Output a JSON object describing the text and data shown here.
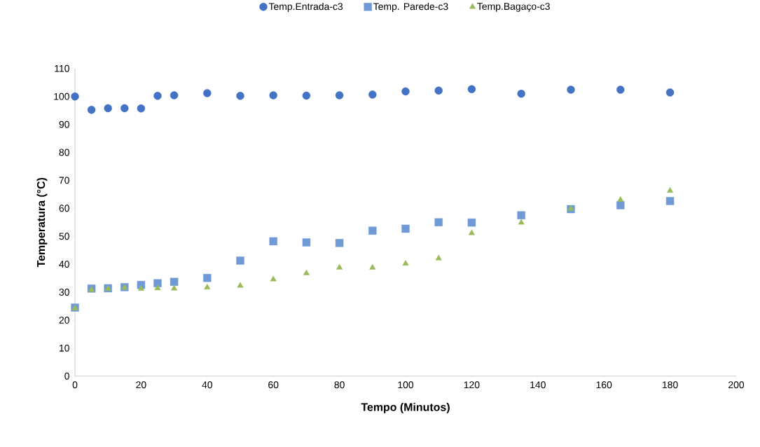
{
  "chart_data": {
    "type": "scatter",
    "xlabel": "Tempo (Minutos)",
    "ylabel": "Temperatura (°C)",
    "x": [
      0,
      5,
      10,
      15,
      20,
      25,
      30,
      40,
      50,
      60,
      70,
      80,
      90,
      100,
      110,
      120,
      135,
      150,
      165,
      180
    ],
    "series": [
      {
        "name": "Temp.Entrada-c3",
        "color": "#4472c4",
        "marker": "circle",
        "values": [
          100,
          95.2,
          95.8,
          95.8,
          95.7,
          100.2,
          100.4,
          101.2,
          100.2,
          100.4,
          100.3,
          100.4,
          100.7,
          101.8,
          102.1,
          102.6,
          101.0,
          102.4,
          102.4,
          101.4
        ]
      },
      {
        "name": "Temp. Parede-c3",
        "color": "#6f9ad6",
        "marker": "square",
        "values": [
          24.5,
          31.3,
          31.4,
          31.8,
          32.6,
          33.2,
          33.7,
          35.1,
          41.3,
          48.2,
          47.8,
          47.6,
          52.0,
          52.7,
          55.0,
          54.9,
          57.5,
          59.7,
          61.1,
          62.6
        ]
      },
      {
        "name": "Temp.Bagaço-c3",
        "color": "#9bbb59",
        "marker": "triangle",
        "values": [
          24.2,
          30.8,
          31.2,
          31.6,
          31.2,
          31.4,
          31.3,
          31.7,
          32.3,
          34.6,
          36.8,
          38.8,
          38.8,
          40.2,
          42.1,
          51.1,
          54.9,
          59.8,
          63.0,
          66.3
        ]
      }
    ],
    "xlim": [
      0,
      200
    ],
    "ylim": [
      0,
      110
    ],
    "xticks": [
      0,
      20,
      40,
      60,
      80,
      100,
      120,
      140,
      160,
      180,
      200
    ],
    "yticks": [
      0,
      10,
      20,
      30,
      40,
      50,
      60,
      70,
      80,
      90,
      100,
      110
    ],
    "grid": false,
    "legend": "top"
  }
}
